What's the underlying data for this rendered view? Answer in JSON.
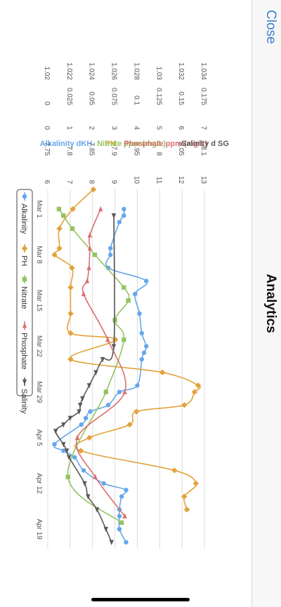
{
  "header": {
    "close_label": "Close",
    "title": "Analytics"
  },
  "colors": {
    "alkalinity": "#64a7ec",
    "ph": "#e3a23a",
    "nitrate": "#94c462",
    "phosphate": "#d9706e",
    "salinity": "#595959",
    "grid": "#dcdcdc",
    "axis_text": "#555555",
    "nav_accent": "#3d7fd1"
  },
  "chart_data": {
    "type": "line",
    "x_type": "date",
    "x_ticks": [
      "Mar 1",
      "Mar 8",
      "Mar 15",
      "Mar 22",
      "Mar 29",
      "Apr 5",
      "Apr 12",
      "Apr 19"
    ],
    "x_range": [
      "2023-02-26",
      "2023-04-22"
    ],
    "grid": "horizontal",
    "legend_position": "bottom",
    "axes": [
      {
        "key": "alkalinity",
        "title": "Alkalinity dKH",
        "min": 6,
        "max": 13,
        "ticks": [
          "6",
          "7",
          "8",
          "9",
          "10",
          "11",
          "12",
          "13"
        ]
      },
      {
        "key": "ph",
        "title": "PH",
        "min": 7.75,
        "max": 8.1,
        "ticks": [
          "7.75",
          "7.8",
          "7.85",
          "7.9",
          "7.95",
          "8",
          "8.05",
          "8.1"
        ]
      },
      {
        "key": "nitrate",
        "title": "Nitrate ppm (mg/L)",
        "min": 0,
        "max": 7,
        "ticks": [
          "0",
          "1",
          "2",
          "3",
          "4",
          "5",
          "6",
          "7"
        ]
      },
      {
        "key": "phosphate",
        "title": "Phosphate ppm (mg/L)",
        "min": 0,
        "max": 0.175,
        "ticks": [
          "0",
          "0.025",
          "0.05",
          "0.075",
          "0.1",
          "0.125",
          "0.15",
          "0.175"
        ]
      },
      {
        "key": "salinity",
        "title": "Salinity d SG",
        "min": 1.02,
        "max": 1.034,
        "ticks": [
          "1.02",
          "1.022",
          "1.024",
          "1.026",
          "1.028",
          "1.03",
          "1.032",
          "1.034"
        ]
      }
    ],
    "series": [
      {
        "name": "Alkalinity",
        "axis": "alkalinity",
        "marker": "circle",
        "x": [
          "2023-03-01",
          "2023-03-02",
          "2023-03-03",
          "2023-03-07",
          "2023-03-08",
          "2023-03-10",
          "2023-03-12",
          "2023-03-14",
          "2023-03-17",
          "2023-03-20",
          "2023-03-22",
          "2023-03-23",
          "2023-03-24",
          "2023-03-28",
          "2023-03-29",
          "2023-03-31",
          "2023-04-01",
          "2023-04-02",
          "2023-04-03",
          "2023-04-06",
          "2023-04-07",
          "2023-04-08",
          "2023-04-10",
          "2023-04-12",
          "2023-04-13",
          "2023-04-14",
          "2023-04-16",
          "2023-04-17",
          "2023-04-19",
          "2023-04-21"
        ],
        "values": [
          9.4,
          9.4,
          9.2,
          8.8,
          8.8,
          8.7,
          10.4,
          9.9,
          10.1,
          10.2,
          10.4,
          10.3,
          10.2,
          10.0,
          9.2,
          8.7,
          7.9,
          7.7,
          7.5,
          6.3,
          6.7,
          7.2,
          7.6,
          8.5,
          9.5,
          9.3,
          9.2,
          9.2,
          9.2,
          9.5
        ]
      },
      {
        "name": "PH",
        "axis": "ph",
        "marker": "diamond",
        "x": [
          "2023-02-26",
          "2023-03-01",
          "2023-03-04",
          "2023-03-07",
          "2023-03-08",
          "2023-03-10",
          "2023-03-13",
          "2023-03-17",
          "2023-03-20",
          "2023-03-21",
          "2023-03-24",
          "2023-03-26",
          "2023-03-28",
          "2023-03-29",
          "2023-03-31",
          "2023-04-01",
          "2023-04-03",
          "2023-04-05",
          "2023-04-07",
          "2023-04-10",
          "2023-04-12",
          "2023-04-14",
          "2023-04-16"
        ],
        "values": [
          7.852,
          7.806,
          7.776,
          7.776,
          7.765,
          7.804,
          7.801,
          7.801,
          7.801,
          7.901,
          7.801,
          8.006,
          8.086,
          8.078,
          8.055,
          7.948,
          7.933,
          7.843,
          7.824,
          8.033,
          8.081,
          8.055,
          8.061
        ]
      },
      {
        "name": "Nitrate",
        "axis": "nitrate",
        "marker": "square",
        "x": [
          "2023-03-01",
          "2023-03-02",
          "2023-03-04",
          "2023-03-08",
          "2023-03-13",
          "2023-03-15",
          "2023-03-18",
          "2023-03-21",
          "2023-03-29",
          "2023-04-11",
          "2023-04-18"
        ],
        "values": [
          0.5,
          0.7,
          1.1,
          2.1,
          3.4,
          3.6,
          3.0,
          3.4,
          2.6,
          0.9,
          3.3
        ]
      },
      {
        "name": "Phosphate",
        "axis": "phosphate",
        "marker": "triangle",
        "x": [
          "2023-03-01",
          "2023-03-05",
          "2023-03-07",
          "2023-03-10",
          "2023-03-12",
          "2023-03-14",
          "2023-03-21",
          "2023-03-29",
          "2023-04-05",
          "2023-04-11",
          "2023-04-17"
        ],
        "values": [
          0.059,
          0.047,
          0.047,
          0.046,
          0.044,
          0.04,
          0.067,
          0.086,
          0.033,
          0.053,
          0.086
        ]
      },
      {
        "name": "Salinity",
        "axis": "salinity",
        "marker": "triangle-down",
        "x": [
          "2023-03-02",
          "2023-03-22",
          "2023-03-24",
          "2023-03-26",
          "2023-03-28",
          "2023-03-30",
          "2023-03-31",
          "2023-04-01",
          "2023-04-02",
          "2023-04-03",
          "2023-04-04",
          "2023-04-06",
          "2023-04-07",
          "2023-04-08",
          "2023-04-12",
          "2023-04-14",
          "2023-04-16",
          "2023-04-19",
          "2023-04-21"
        ],
        "values": [
          1.0259,
          1.0259,
          1.0249,
          1.0243,
          1.0237,
          1.0231,
          1.0229,
          1.0228,
          1.022,
          1.0214,
          1.0207,
          1.0214,
          1.0217,
          1.0219,
          1.0233,
          1.0236,
          1.0244,
          1.0252,
          1.0257
        ]
      }
    ]
  }
}
